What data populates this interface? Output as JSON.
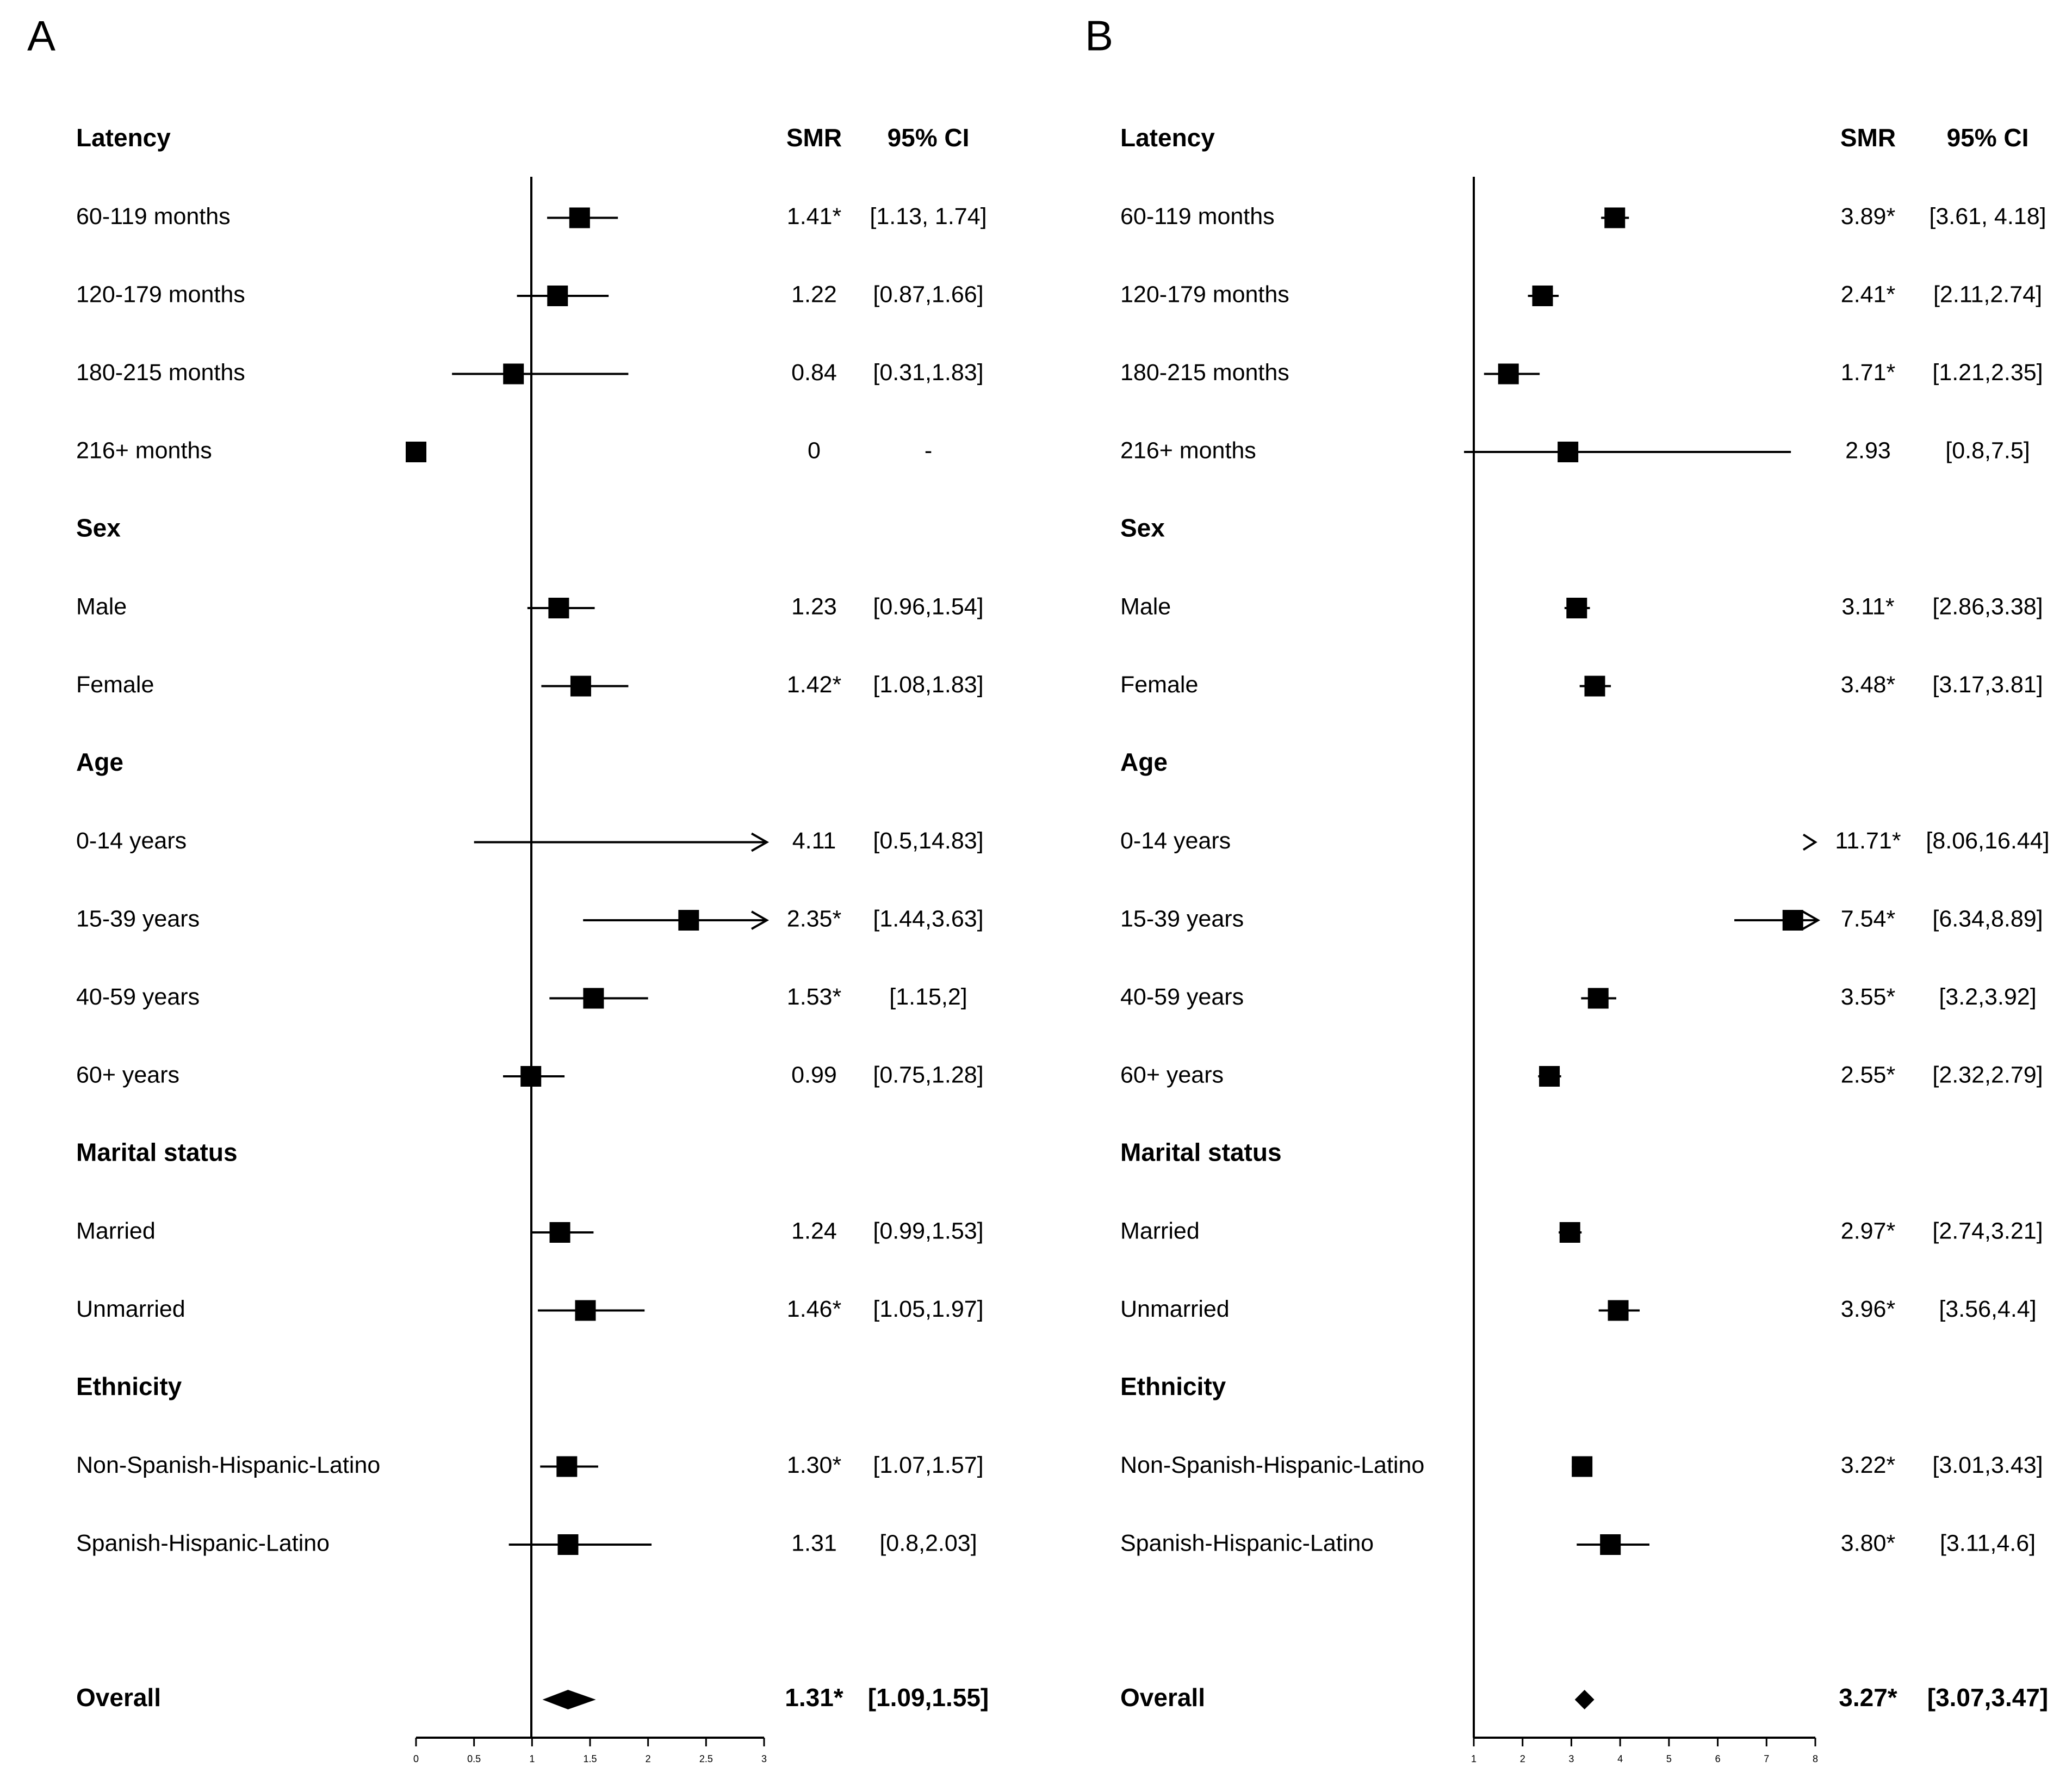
{
  "chart_data": [
    {
      "type": "forest",
      "panel_label": "A",
      "headers": {
        "group": "Latency",
        "smr": "SMR",
        "ci": "95% CI"
      },
      "xlim": [
        0,
        3
      ],
      "ticks": [
        "0",
        "0.5",
        "1",
        "1.5",
        "2",
        "2.5",
        "3"
      ],
      "reference_line": 1,
      "rows": [
        {
          "kind": "header",
          "label": "Latency"
        },
        {
          "kind": "item",
          "label": "60-119 months",
          "smr": 1.41,
          "lo": 1.13,
          "hi": 1.74,
          "smr_text": "1.41*",
          "ci_text": "[1.13, 1.74]"
        },
        {
          "kind": "item",
          "label": "120-179 months",
          "smr": 1.22,
          "lo": 0.87,
          "hi": 1.66,
          "smr_text": "1.22",
          "ci_text": "[0.87,1.66]"
        },
        {
          "kind": "item",
          "label": "180-215 months",
          "smr": 0.84,
          "lo": 0.31,
          "hi": 1.83,
          "smr_text": "0.84",
          "ci_text": "[0.31,1.83]"
        },
        {
          "kind": "item",
          "label": "216+ months",
          "smr": 0,
          "lo": null,
          "hi": null,
          "smr_text": "0",
          "ci_text": "-"
        },
        {
          "kind": "header",
          "label": "Sex"
        },
        {
          "kind": "item",
          "label": "Male",
          "smr": 1.23,
          "lo": 0.96,
          "hi": 1.54,
          "smr_text": "1.23",
          "ci_text": "[0.96,1.54]"
        },
        {
          "kind": "item",
          "label": "Female",
          "smr": 1.42,
          "lo": 1.08,
          "hi": 1.83,
          "smr_text": "1.42*",
          "ci_text": "[1.08,1.83]"
        },
        {
          "kind": "header",
          "label": "Age"
        },
        {
          "kind": "item",
          "label": "0-14 years",
          "smr": 4.11,
          "lo": 0.5,
          "hi": 14.83,
          "smr_text": "4.11",
          "ci_text": "[0.5,14.83]"
        },
        {
          "kind": "item",
          "label": "15-39 years",
          "smr": 2.35,
          "lo": 1.44,
          "hi": 3.63,
          "smr_text": "2.35*",
          "ci_text": "[1.44,3.63]"
        },
        {
          "kind": "item",
          "label": "40-59 years",
          "smr": 1.53,
          "lo": 1.15,
          "hi": 2,
          "smr_text": "1.53*",
          "ci_text": "[1.15,2]"
        },
        {
          "kind": "item",
          "label": "60+ years",
          "smr": 0.99,
          "lo": 0.75,
          "hi": 1.28,
          "smr_text": "0.99",
          "ci_text": "[0.75,1.28]"
        },
        {
          "kind": "header",
          "label": "Marital status"
        },
        {
          "kind": "item",
          "label": "Married",
          "smr": 1.24,
          "lo": 0.99,
          "hi": 1.53,
          "smr_text": "1.24",
          "ci_text": "[0.99,1.53]"
        },
        {
          "kind": "item",
          "label": "Unmarried",
          "smr": 1.46,
          "lo": 1.05,
          "hi": 1.97,
          "smr_text": "1.46*",
          "ci_text": "[1.05,1.97]"
        },
        {
          "kind": "header",
          "label": "Ethnicity"
        },
        {
          "kind": "item",
          "label": "Non-Spanish-Hispanic-Latino",
          "smr": 1.3,
          "lo": 1.07,
          "hi": 1.57,
          "smr_text": "1.30*",
          "ci_text": "[1.07,1.57]"
        },
        {
          "kind": "item",
          "label": "Spanish-Hispanic-Latino",
          "smr": 1.31,
          "lo": 0.8,
          "hi": 2.03,
          "smr_text": "1.31",
          "ci_text": "[0.8,2.03]"
        }
      ],
      "overall": {
        "label": "Overall",
        "smr": 1.31,
        "lo": 1.09,
        "hi": 1.55,
        "smr_text": "1.31*",
        "ci_text": "[1.09,1.55]"
      }
    },
    {
      "type": "forest",
      "panel_label": "B",
      "headers": {
        "group": "Latency",
        "smr": "SMR",
        "ci": "95% CI"
      },
      "xlim": [
        1,
        8
      ],
      "ticks": [
        "1",
        "2",
        "3",
        "4",
        "5",
        "6",
        "7",
        "8"
      ],
      "reference_line": 1,
      "rows": [
        {
          "kind": "header",
          "label": "Latency"
        },
        {
          "kind": "item",
          "label": "60-119 months",
          "smr": 3.89,
          "lo": 3.61,
          "hi": 4.18,
          "smr_text": "3.89*",
          "ci_text": "[3.61, 4.18]"
        },
        {
          "kind": "item",
          "label": "120-179 months",
          "smr": 2.41,
          "lo": 2.11,
          "hi": 2.74,
          "smr_text": "2.41*",
          "ci_text": "[2.11,2.74]"
        },
        {
          "kind": "item",
          "label": "180-215 months",
          "smr": 1.71,
          "lo": 1.21,
          "hi": 2.35,
          "smr_text": "1.71*",
          "ci_text": "[1.21,2.35]"
        },
        {
          "kind": "item",
          "label": "216+ months",
          "smr": 2.93,
          "lo": 0.8,
          "hi": 7.5,
          "smr_text": "2.93",
          "ci_text": "[0.8,7.5]"
        },
        {
          "kind": "header",
          "label": "Sex"
        },
        {
          "kind": "item",
          "label": "Male",
          "smr": 3.11,
          "lo": 2.86,
          "hi": 3.38,
          "smr_text": "3.11*",
          "ci_text": "[2.86,3.38]"
        },
        {
          "kind": "item",
          "label": "Female",
          "smr": 3.48,
          "lo": 3.17,
          "hi": 3.81,
          "smr_text": "3.48*",
          "ci_text": "[3.17,3.81]"
        },
        {
          "kind": "header",
          "label": "Age"
        },
        {
          "kind": "item",
          "label": "0-14 years",
          "smr": 11.71,
          "lo": 8.06,
          "hi": 16.44,
          "smr_text": "11.71*",
          "ci_text": "[8.06,16.44]"
        },
        {
          "kind": "item",
          "label": "15-39 years",
          "smr": 7.54,
          "lo": 6.34,
          "hi": 8.89,
          "smr_text": "7.54*",
          "ci_text": "[6.34,8.89]"
        },
        {
          "kind": "item",
          "label": "40-59 years",
          "smr": 3.55,
          "lo": 3.2,
          "hi": 3.92,
          "smr_text": "3.55*",
          "ci_text": "[3.2,3.92]"
        },
        {
          "kind": "item",
          "label": "60+ years",
          "smr": 2.55,
          "lo": 2.32,
          "hi": 2.79,
          "smr_text": "2.55*",
          "ci_text": "[2.32,2.79]"
        },
        {
          "kind": "header",
          "label": "Marital status"
        },
        {
          "kind": "item",
          "label": "Married",
          "smr": 2.97,
          "lo": 2.74,
          "hi": 3.21,
          "smr_text": "2.97*",
          "ci_text": "[2.74,3.21]"
        },
        {
          "kind": "item",
          "label": "Unmarried",
          "smr": 3.96,
          "lo": 3.56,
          "hi": 4.4,
          "smr_text": "3.96*",
          "ci_text": "[3.56,4.4]"
        },
        {
          "kind": "header",
          "label": "Ethnicity"
        },
        {
          "kind": "item",
          "label": "Non-Spanish-Hispanic-Latino",
          "smr": 3.22,
          "lo": 3.01,
          "hi": 3.43,
          "smr_text": "3.22*",
          "ci_text": "[3.01,3.43]"
        },
        {
          "kind": "item",
          "label": "Spanish-Hispanic-Latino",
          "smr": 3.8,
          "lo": 3.11,
          "hi": 4.6,
          "smr_text": "3.80*",
          "ci_text": "[3.11,4.6]"
        }
      ],
      "overall": {
        "label": "Overall",
        "smr": 3.27,
        "lo": 3.07,
        "hi": 3.47,
        "smr_text": "3.27*",
        "ci_text": "[3.07,3.47]"
      }
    }
  ]
}
